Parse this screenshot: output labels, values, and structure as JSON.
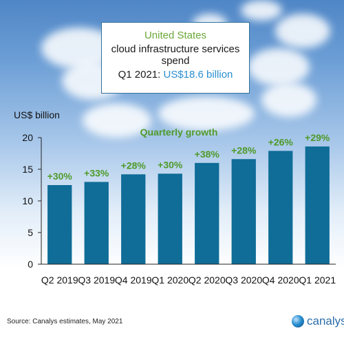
{
  "title_box": {
    "line1": "United States",
    "line2": "cloud infrastructure services spend",
    "line3_prefix": "Q1 2021: ",
    "line3_highlight": "US$18.6 billion"
  },
  "source": "Source: Canalys estimates, May 2021",
  "logo_text": "canalys",
  "chart_data": {
    "type": "bar",
    "ylabel": "US$ billion",
    "subtitle": "Quarterly growth",
    "categories": [
      "Q2 2019",
      "Q3 2019",
      "Q4 2019",
      "Q1 2020",
      "Q2 2020",
      "Q3 2020",
      "Q4 2020",
      "Q1 2021"
    ],
    "values": [
      12.5,
      13.0,
      14.2,
      14.3,
      16.0,
      16.6,
      17.9,
      18.6
    ],
    "growth_labels": [
      "+30%",
      "+33%",
      "+28%",
      "+30%",
      "+38%",
      "+28%",
      "+26%",
      "+29%"
    ],
    "ylim": [
      0,
      20
    ],
    "yticks": [
      0,
      5,
      10,
      15,
      20
    ],
    "bar_color": "#0f6d98",
    "growth_color": "#4f9a2a",
    "grid": false
  }
}
